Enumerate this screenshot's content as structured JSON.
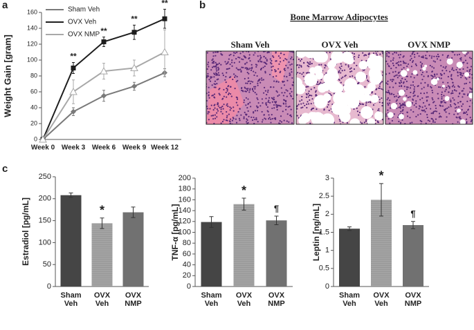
{
  "chart_data": [
    {
      "type": "line",
      "panel": "a",
      "ylabel": "Weight Gain [gram]",
      "categories": [
        "Week 0",
        "Week 3",
        "Week 6",
        "Week 9",
        "Week 12"
      ],
      "ylim": [
        0,
        160
      ],
      "yticks": [
        0,
        20,
        40,
        60,
        80,
        100,
        120,
        140,
        160
      ],
      "legend": "top-left",
      "annotations": [
        null,
        "**",
        "**",
        "**",
        "**"
      ],
      "series": [
        {
          "name": "Sham Veh",
          "color": "#7a7a7a",
          "marker": "diamond",
          "values": [
            0,
            35,
            55,
            67,
            84
          ],
          "errors": [
            0,
            5,
            7,
            5,
            5
          ]
        },
        {
          "name": "OVX Veh",
          "color": "#1e1e1e",
          "marker": "square",
          "values": [
            0,
            90,
            123,
            135,
            152
          ],
          "errors": [
            0,
            7,
            6,
            9,
            12
          ]
        },
        {
          "name": "OVX NMP",
          "color": "#a8a8a8",
          "marker": "triangle",
          "values": [
            0,
            60,
            86,
            90,
            110
          ],
          "errors": [
            0,
            15,
            10,
            10,
            28
          ]
        }
      ]
    },
    {
      "type": "bar",
      "panel": "c",
      "ylabel": "Estradiol [pg/mL]",
      "categories": [
        "Sham Veh",
        "OVX Veh",
        "OVX NMP"
      ],
      "colors": [
        "#454545",
        "#a3a3a3",
        "#717171"
      ],
      "values": [
        208,
        144,
        169
      ],
      "errors": [
        5,
        12,
        12
      ],
      "annotations": [
        null,
        "*",
        null
      ],
      "ylim": [
        0,
        250
      ],
      "yticks": [
        0,
        50,
        100,
        150,
        200,
        250
      ]
    },
    {
      "type": "bar",
      "ylabel": "TNF-α [pg/mL]",
      "categories": [
        "Sham Veh",
        "OVX Veh",
        "OVX NMP"
      ],
      "colors": [
        "#454545",
        "#a3a3a3",
        "#717171"
      ],
      "values": [
        119,
        152,
        122
      ],
      "errors": [
        10,
        11,
        8
      ],
      "annotations": [
        null,
        "*",
        "¶"
      ],
      "ylim": [
        0,
        200
      ],
      "yticks": [
        0,
        20,
        40,
        60,
        80,
        100,
        120,
        140,
        160,
        180,
        200
      ]
    },
    {
      "type": "bar",
      "ylabel": "Leptin [ng/mL]",
      "categories": [
        "Sham Veh",
        "OVX Veh",
        "OVX NMP"
      ],
      "colors": [
        "#454545",
        "#a3a3a3",
        "#717171"
      ],
      "values": [
        1.6,
        2.4,
        1.7
      ],
      "errors": [
        0.05,
        0.45,
        0.1
      ],
      "annotations": [
        null,
        "*",
        "¶"
      ],
      "ylim": [
        0,
        3
      ],
      "yticks": [
        0,
        0.5,
        1,
        1.5,
        2,
        2.5,
        3
      ]
    }
  ],
  "panel_b": {
    "panel": "b",
    "title": "Bone Marrow Adipocytes",
    "images": [
      "Sham Veh",
      "OVX Veh",
      "OVX NMP"
    ]
  }
}
